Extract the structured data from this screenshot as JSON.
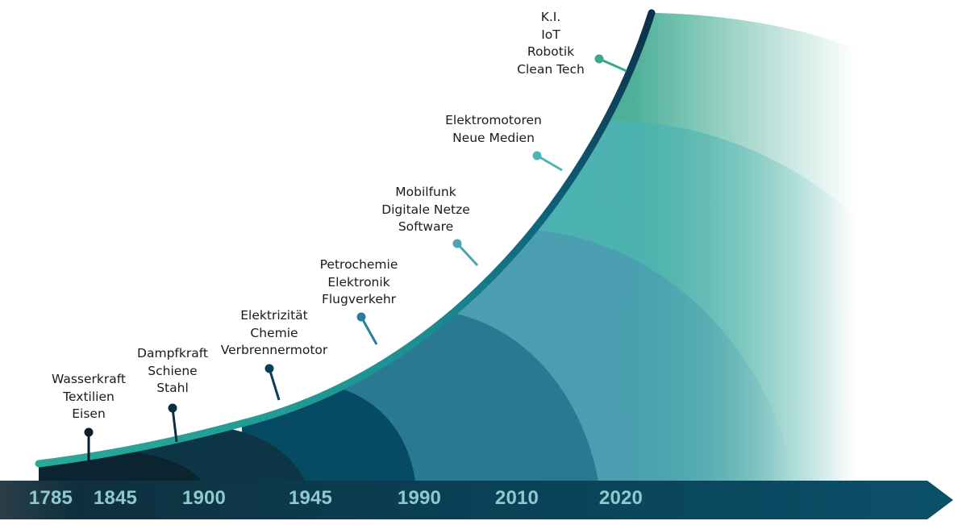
{
  "colors": {
    "wave1": "#0b2430",
    "wave2": "#0c3546",
    "wave3": "#064a63",
    "wave4": "#2a7993",
    "wave5": "#4b9cb0",
    "wave6": "#4bb3b2",
    "wave7": "#3ba88f",
    "curve_start": "#2aa898",
    "curve_end": "#0b3148",
    "arrow": "#0a4a62",
    "year_text": "#8ec9cf"
  },
  "timeline": {
    "years": [
      "1785",
      "1845",
      "1900",
      "1945",
      "1990",
      "2010",
      "2020"
    ]
  },
  "waves": [
    {
      "lines": [
        "Wasserkraft",
        "Textilien",
        "Eisen"
      ],
      "marker_color": "#0b1e2a"
    },
    {
      "lines": [
        "Dampfkraft",
        "Schiene",
        "Stahl"
      ],
      "marker_color": "#0b2e3c"
    },
    {
      "lines": [
        "Elektrizität",
        "Chemie",
        "Verbrennermotor"
      ],
      "marker_color": "#0a3f56"
    },
    {
      "lines": [
        "Petrochemie",
        "Elektronik",
        "Flugverkehr"
      ],
      "marker_color": "#2a7e99"
    },
    {
      "lines": [
        "Mobilfunk",
        "Digitale Netze",
        "Software"
      ],
      "marker_color": "#4ba3b4"
    },
    {
      "lines": [
        "Elektromotoren",
        "Neue Medien"
      ],
      "marker_color": "#4bb6b3"
    },
    {
      "lines": [
        "K.I.",
        "IoT",
        "Robotik",
        "Clean Tech"
      ],
      "marker_color": "#3aa78e"
    }
  ]
}
